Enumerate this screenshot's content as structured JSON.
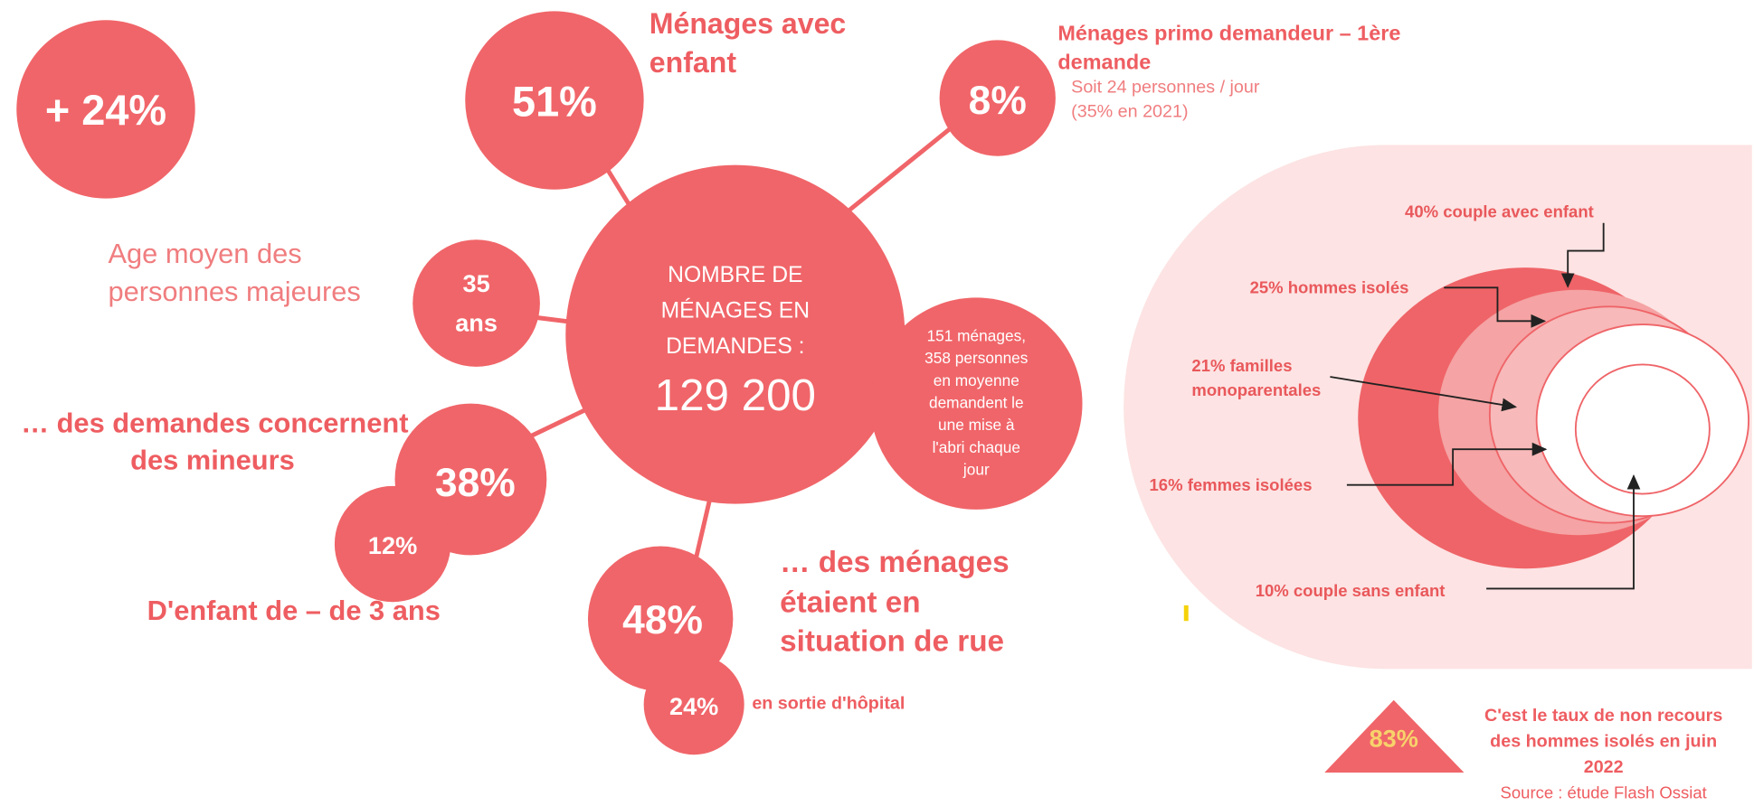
{
  "increase": "+ 24%",
  "households_with_child": {
    "value": "51%",
    "label_line1": "Ménages avec",
    "label_line2": "enfant"
  },
  "first_request": {
    "value": "8%",
    "title_line1": "Ménages primo demandeur – 1ère",
    "title_line2": "demande",
    "detail_line1": "Soit 24 personnes / jour",
    "detail_line2": "(35% en 2021)"
  },
  "center": {
    "line1": "NOMBRE DE",
    "line2": "MÉNAGES EN",
    "line3": "DEMANDES :",
    "value": "129 200"
  },
  "daily": [
    "151 ménages,",
    "358 personnes",
    "en moyenne",
    "demandent le",
    "une mise à",
    "l'abri chaque",
    "jour"
  ],
  "age": {
    "label_line1": "Age moyen des",
    "label_line2": "personnes majeures",
    "value_line1": "35",
    "value_line2": "ans"
  },
  "minors": {
    "label_line1": "… des demandes concernent",
    "label_line2": "des mineurs",
    "value": "38%",
    "under3_value": "12%",
    "under3_label": "D'enfant de – de 3 ans"
  },
  "street": {
    "value": "48%",
    "label_line1": "… des ménages",
    "label_line2": "étaient en",
    "label_line3": "situation de rue",
    "hospital_value": "24%",
    "hospital_label": "en sortie d'hôpital"
  },
  "composition": {
    "couple_child": "40% couple avec enfant",
    "single_men": "25% hommes isolés",
    "single_parent_line1": "21% familles",
    "single_parent_line2": "monoparentales",
    "single_women": "16% femmes isolées",
    "couple_no_child": "10% couple sans enfant"
  },
  "non_recourse": {
    "value": "83%",
    "line1": "C'est le taux de non recours",
    "line2": "des hommes isolés en juin",
    "line3": "2022",
    "source": "Source : étude Flash Ossiat"
  }
}
